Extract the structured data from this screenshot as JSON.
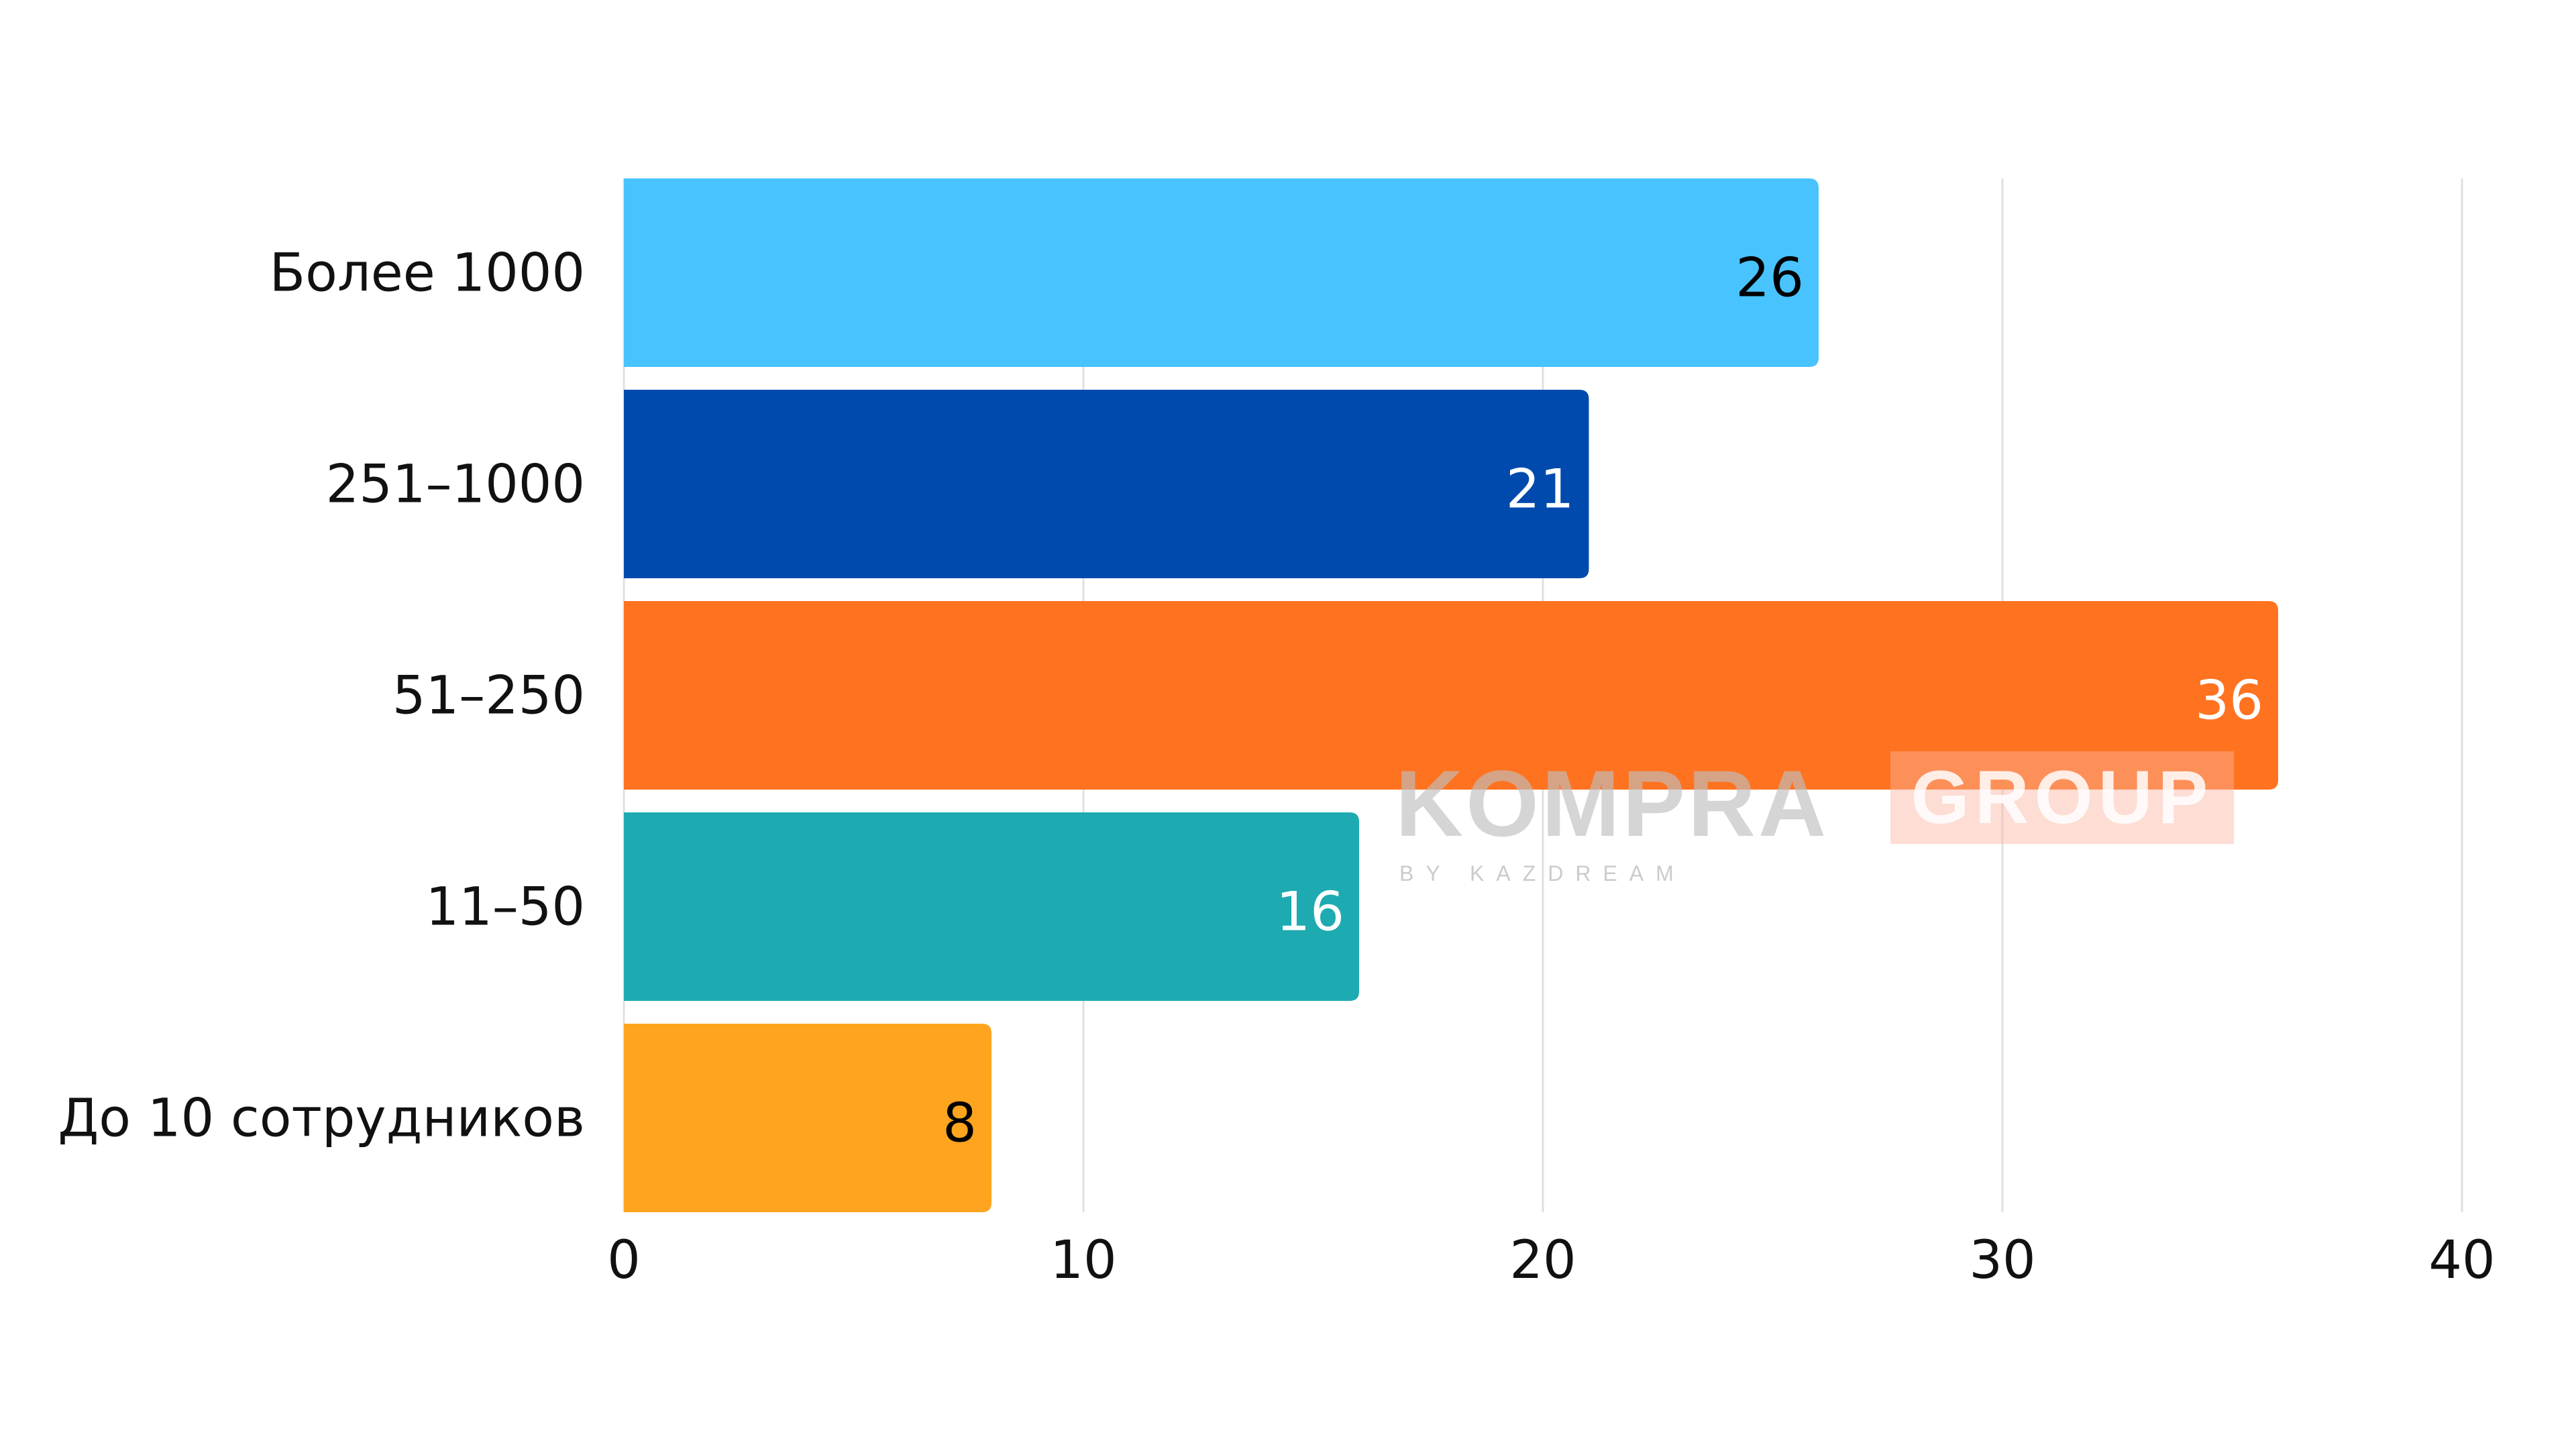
{
  "chart_data": {
    "type": "bar",
    "orientation": "horizontal",
    "categories": [
      "Более 1000",
      "251–1000",
      "51–250",
      "11–50",
      "До 10 сотрудников"
    ],
    "values": [
      26,
      21,
      36,
      16,
      8
    ],
    "colors": [
      "#48c3fd",
      "#004aad",
      "#ff7320",
      "#1dabb1",
      "#ffa41f"
    ],
    "label_colors": [
      "#000000",
      "#ffffff",
      "#ffffff",
      "#ffffff",
      "#000000"
    ],
    "xlim": [
      0,
      40
    ],
    "xticks": [
      "0",
      "10",
      "20",
      "30",
      "40"
    ],
    "grid": true,
    "data_labels": true
  },
  "watermark": {
    "brand": "KOMPRA",
    "brand_suffix": "GROUP",
    "byline": "BY KAZDREAM"
  }
}
